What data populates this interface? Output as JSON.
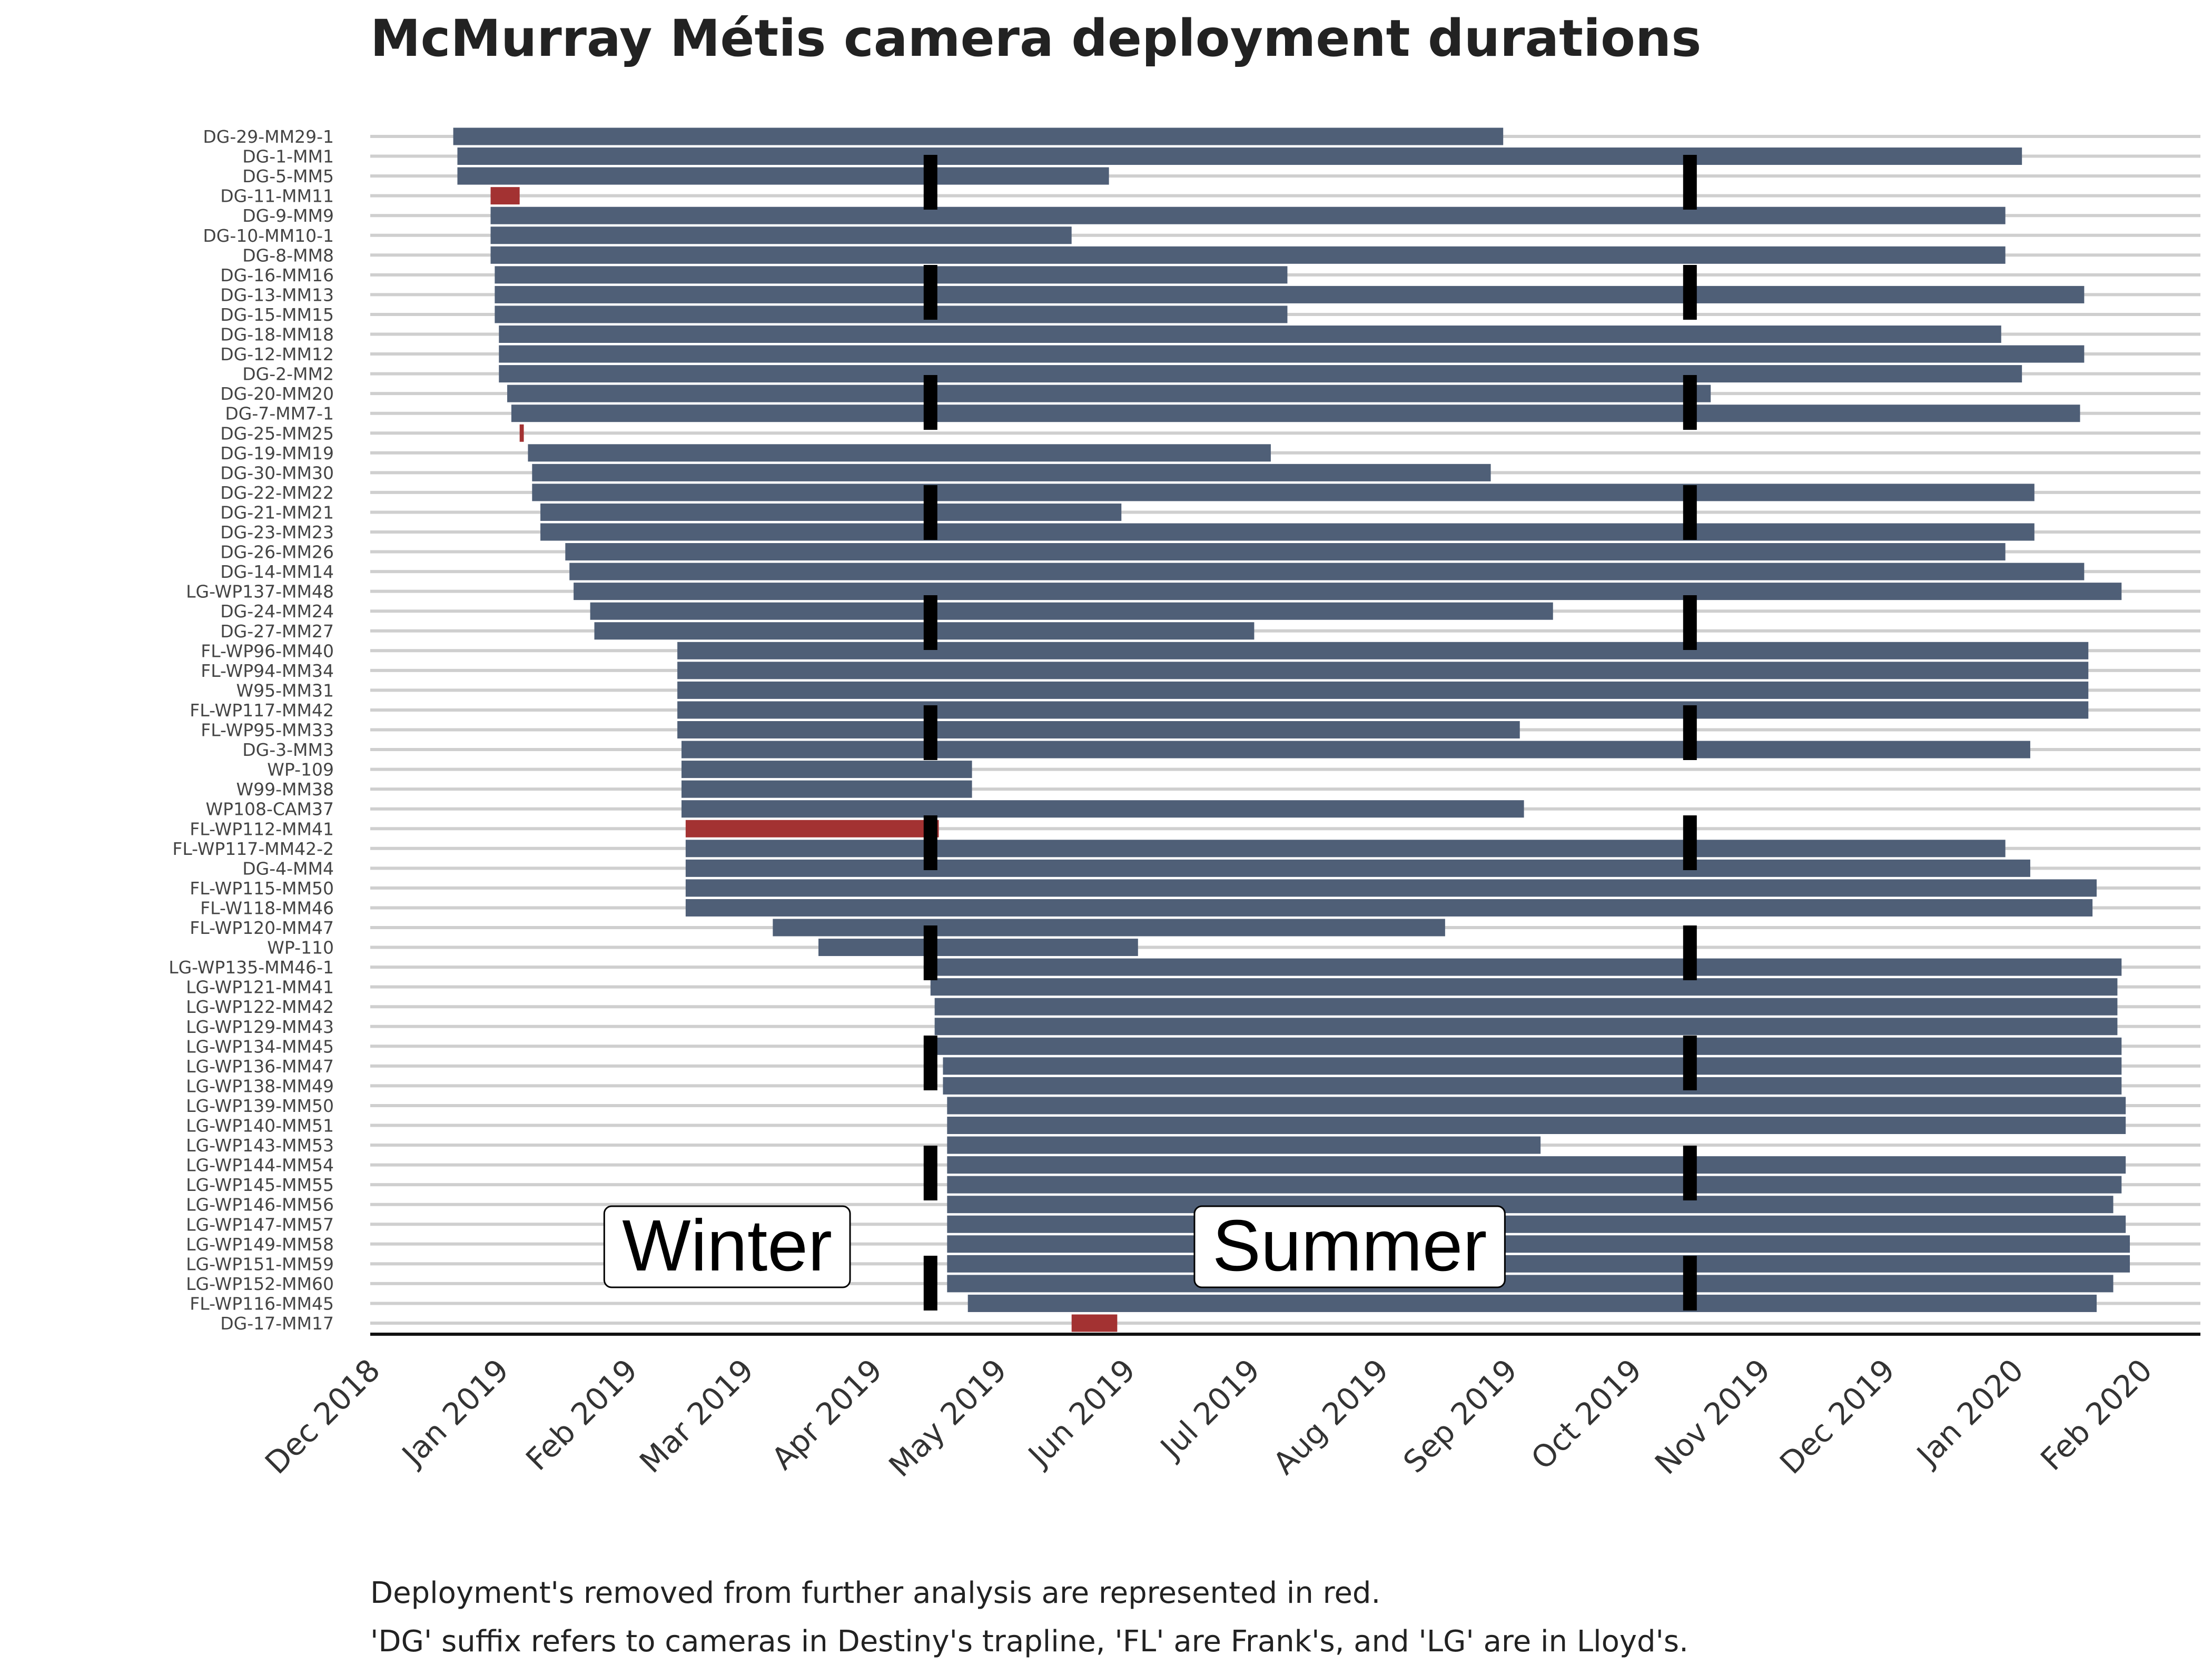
{
  "chart_data": {
    "type": "bar",
    "orientation": "horizontal",
    "subtype": "gantt",
    "title": "McMurray Métis camera deployment durations",
    "xlabel": "",
    "ylabel": "",
    "caption_lines": [
      "Deployment's removed from further analysis are represented in red.",
      "'DG' suffix refers to cameras in Destiny's trapline, 'FL' are Frank's, and 'LG' are in Lloyd's."
    ],
    "x_axis_type": "date",
    "xlim": [
      "2018-12-01",
      "2020-02-15"
    ],
    "x_ticks": [
      {
        "date": "2018-12-01",
        "label": "Dec 2018"
      },
      {
        "date": "2019-01-01",
        "label": "Jan 2019"
      },
      {
        "date": "2019-02-01",
        "label": "Feb 2019"
      },
      {
        "date": "2019-03-01",
        "label": "Mar 2019"
      },
      {
        "date": "2019-04-01",
        "label": "Apr 2019"
      },
      {
        "date": "2019-05-01",
        "label": "May 2019"
      },
      {
        "date": "2019-06-01",
        "label": "Jun 2019"
      },
      {
        "date": "2019-07-01",
        "label": "Jul 2019"
      },
      {
        "date": "2019-08-01",
        "label": "Aug 2019"
      },
      {
        "date": "2019-09-01",
        "label": "Sep 2019"
      },
      {
        "date": "2019-10-01",
        "label": "Oct 2019"
      },
      {
        "date": "2019-11-01",
        "label": "Nov 2019"
      },
      {
        "date": "2019-12-01",
        "label": "Dec 2019"
      },
      {
        "date": "2020-01-01",
        "label": "Jan 2020"
      },
      {
        "date": "2020-02-01",
        "label": "Feb 2020"
      }
    ],
    "season_boundaries": [
      "2019-04-15",
      "2019-10-15"
    ],
    "season_labels": [
      {
        "label": "Winter",
        "date": "2019-02-25"
      },
      {
        "label": "Summer",
        "date": "2019-07-25"
      }
    ],
    "grid": {
      "horizontal": true,
      "vertical": false
    },
    "colors": {
      "kept": "#4f5f77",
      "removed": "#a33232",
      "gridline": "#cfcfcf",
      "boundary": "#000000"
    },
    "series": [
      {
        "name": "DG-29-MM29-1",
        "start": "2018-12-21",
        "end": "2019-08-31",
        "removed": false
      },
      {
        "name": "DG-1-MM1",
        "start": "2018-12-22",
        "end": "2020-01-03",
        "removed": false
      },
      {
        "name": "DG-5-MM5",
        "start": "2018-12-22",
        "end": "2019-05-28",
        "removed": false
      },
      {
        "name": "DG-11-MM11",
        "start": "2018-12-30",
        "end": "2019-01-06",
        "removed": true
      },
      {
        "name": "DG-9-MM9",
        "start": "2018-12-30",
        "end": "2019-12-30",
        "removed": false
      },
      {
        "name": "DG-10-MM10-1",
        "start": "2018-12-30",
        "end": "2019-05-19",
        "removed": false
      },
      {
        "name": "DG-8-MM8",
        "start": "2018-12-30",
        "end": "2019-12-30",
        "removed": false
      },
      {
        "name": "DG-16-MM16",
        "start": "2018-12-31",
        "end": "2019-07-10",
        "removed": false
      },
      {
        "name": "DG-13-MM13",
        "start": "2018-12-31",
        "end": "2020-01-18",
        "removed": false
      },
      {
        "name": "DG-15-MM15",
        "start": "2018-12-31",
        "end": "2019-07-10",
        "removed": false
      },
      {
        "name": "DG-18-MM18",
        "start": "2019-01-01",
        "end": "2019-12-29",
        "removed": false
      },
      {
        "name": "DG-12-MM12",
        "start": "2019-01-01",
        "end": "2020-01-18",
        "removed": false
      },
      {
        "name": "DG-2-MM2",
        "start": "2019-01-01",
        "end": "2020-01-03",
        "removed": false
      },
      {
        "name": "DG-20-MM20",
        "start": "2019-01-03",
        "end": "2019-10-20",
        "removed": false
      },
      {
        "name": "DG-7-MM7-1",
        "start": "2019-01-04",
        "end": "2020-01-17",
        "removed": false
      },
      {
        "name": "DG-25-MM25",
        "start": "2019-01-06",
        "end": "2019-01-07",
        "removed": true
      },
      {
        "name": "DG-19-MM19",
        "start": "2019-01-08",
        "end": "2019-07-06",
        "removed": false
      },
      {
        "name": "DG-30-MM30",
        "start": "2019-01-09",
        "end": "2019-08-28",
        "removed": false
      },
      {
        "name": "DG-22-MM22",
        "start": "2019-01-09",
        "end": "2020-01-06",
        "removed": false
      },
      {
        "name": "DG-21-MM21",
        "start": "2019-01-11",
        "end": "2019-05-31",
        "removed": false
      },
      {
        "name": "DG-23-MM23",
        "start": "2019-01-11",
        "end": "2020-01-06",
        "removed": false
      },
      {
        "name": "DG-26-MM26",
        "start": "2019-01-17",
        "end": "2019-12-30",
        "removed": false
      },
      {
        "name": "DG-14-MM14",
        "start": "2019-01-18",
        "end": "2020-01-18",
        "removed": false
      },
      {
        "name": "LG-WP137-MM48",
        "start": "2019-01-19",
        "end": "2020-01-27",
        "removed": false
      },
      {
        "name": "DG-24-MM24",
        "start": "2019-01-23",
        "end": "2019-09-12",
        "removed": false
      },
      {
        "name": "DG-27-MM27",
        "start": "2019-01-24",
        "end": "2019-07-02",
        "removed": false
      },
      {
        "name": "FL-WP96-MM40",
        "start": "2019-02-13",
        "end": "2020-01-19",
        "removed": false
      },
      {
        "name": "FL-WP94-MM34",
        "start": "2019-02-13",
        "end": "2020-01-19",
        "removed": false
      },
      {
        "name": "W95-MM31",
        "start": "2019-02-13",
        "end": "2020-01-19",
        "removed": false
      },
      {
        "name": "FL-WP117-MM42",
        "start": "2019-02-13",
        "end": "2020-01-19",
        "removed": false
      },
      {
        "name": "FL-WP95-MM33",
        "start": "2019-02-13",
        "end": "2019-09-04",
        "removed": false
      },
      {
        "name": "DG-3-MM3",
        "start": "2019-02-14",
        "end": "2020-01-05",
        "removed": false
      },
      {
        "name": "WP-109",
        "start": "2019-02-14",
        "end": "2019-04-25",
        "removed": false
      },
      {
        "name": "W99-MM38",
        "start": "2019-02-14",
        "end": "2019-04-25",
        "removed": false
      },
      {
        "name": "WP108-CAM37",
        "start": "2019-02-14",
        "end": "2019-09-05",
        "removed": false
      },
      {
        "name": "FL-WP112-MM41",
        "start": "2019-02-15",
        "end": "2019-04-17",
        "removed": true
      },
      {
        "name": "FL-WP117-MM42-2",
        "start": "2019-02-15",
        "end": "2019-12-30",
        "removed": false
      },
      {
        "name": "DG-4-MM4",
        "start": "2019-02-15",
        "end": "2020-01-05",
        "removed": false
      },
      {
        "name": "FL-WP115-MM50",
        "start": "2019-02-15",
        "end": "2020-01-21",
        "removed": false
      },
      {
        "name": "FL-W118-MM46",
        "start": "2019-02-15",
        "end": "2020-01-20",
        "removed": false
      },
      {
        "name": "FL-WP120-MM47",
        "start": "2019-03-08",
        "end": "2019-08-17",
        "removed": false
      },
      {
        "name": "WP-110",
        "start": "2019-03-19",
        "end": "2019-06-04",
        "removed": false
      },
      {
        "name": "LG-WP135-MM46-1",
        "start": "2019-04-15",
        "end": "2020-01-27",
        "removed": false
      },
      {
        "name": "LG-WP121-MM41",
        "start": "2019-04-15",
        "end": "2020-01-26",
        "removed": false
      },
      {
        "name": "LG-WP122-MM42",
        "start": "2019-04-16",
        "end": "2020-01-26",
        "removed": false
      },
      {
        "name": "LG-WP129-MM43",
        "start": "2019-04-16",
        "end": "2020-01-26",
        "removed": false
      },
      {
        "name": "LG-WP134-MM45",
        "start": "2019-04-16",
        "end": "2020-01-27",
        "removed": false
      },
      {
        "name": "LG-WP136-MM47",
        "start": "2019-04-18",
        "end": "2020-01-27",
        "removed": false
      },
      {
        "name": "LG-WP138-MM49",
        "start": "2019-04-18",
        "end": "2020-01-27",
        "removed": false
      },
      {
        "name": "LG-WP139-MM50",
        "start": "2019-04-19",
        "end": "2020-01-28",
        "removed": false
      },
      {
        "name": "LG-WP140-MM51",
        "start": "2019-04-19",
        "end": "2020-01-28",
        "removed": false
      },
      {
        "name": "LG-WP143-MM53",
        "start": "2019-04-19",
        "end": "2019-09-09",
        "removed": false
      },
      {
        "name": "LG-WP144-MM54",
        "start": "2019-04-19",
        "end": "2020-01-28",
        "removed": false
      },
      {
        "name": "LG-WP145-MM55",
        "start": "2019-04-19",
        "end": "2020-01-27",
        "removed": false
      },
      {
        "name": "LG-WP146-MM56",
        "start": "2019-04-19",
        "end": "2020-01-25",
        "removed": false
      },
      {
        "name": "LG-WP147-MM57",
        "start": "2019-04-19",
        "end": "2020-01-28",
        "removed": false
      },
      {
        "name": "LG-WP149-MM58",
        "start": "2019-04-19",
        "end": "2020-01-29",
        "removed": false
      },
      {
        "name": "LG-WP151-MM59",
        "start": "2019-04-19",
        "end": "2020-01-29",
        "removed": false
      },
      {
        "name": "LG-WP152-MM60",
        "start": "2019-04-19",
        "end": "2020-01-25",
        "removed": false
      },
      {
        "name": "FL-WP116-MM45",
        "start": "2019-04-24",
        "end": "2020-01-21",
        "removed": false
      },
      {
        "name": "DG-17-MM17",
        "start": "2019-05-19",
        "end": "2019-05-30",
        "removed": true
      }
    ]
  }
}
